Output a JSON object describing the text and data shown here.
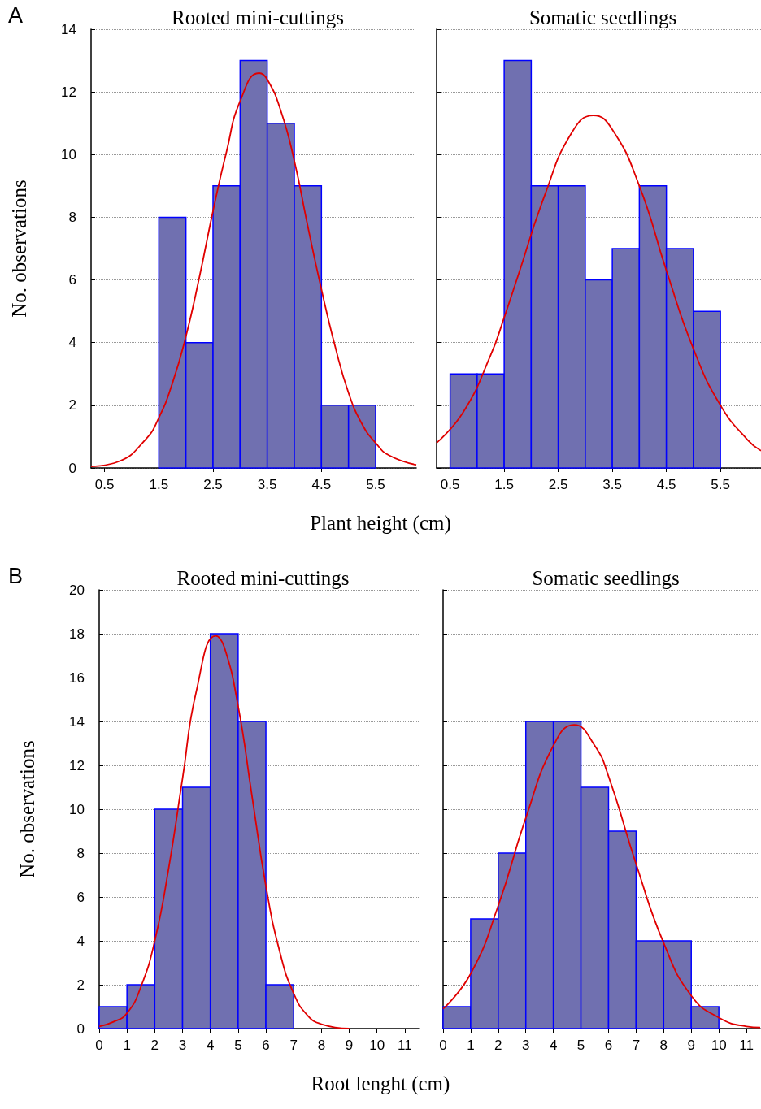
{
  "chart_data": [
    {
      "type": "histogram",
      "title": "Rooted mini-cuttings",
      "xlabel": "Plant height (cm)",
      "ylabel": "No. observations",
      "annotations": [
        "A"
      ],
      "bins": [
        1.5,
        2,
        2.5,
        3,
        3.5,
        4,
        4.5,
        5,
        5.5
      ],
      "values": [
        8,
        4,
        9,
        13,
        11,
        9,
        2,
        2
      ],
      "color": "#7070b0",
      "xlim": [
        0.25,
        6.25
      ],
      "xticks": [
        0.5,
        1.5,
        2.5,
        3.5,
        4.5,
        5.5
      ],
      "ylim": [
        0,
        14
      ],
      "yticks": [
        0,
        2,
        4,
        6,
        8,
        10,
        12,
        14
      ],
      "grid": "y",
      "series": [
        {
          "type": "line",
          "color": "#e00000",
          "marker": "none",
          "x": [
            0.25,
            0.75,
            1.25,
            1.5,
            1.75,
            2,
            2.25,
            2.5,
            2.75,
            3,
            3.35,
            3.5,
            3.75,
            4,
            4.25,
            4.5,
            4.75,
            5,
            5.25,
            5.5,
            5.75,
            6.25
          ],
          "values": [
            0.05,
            0.2,
            0.9,
            1.6,
            2.7,
            4.2,
            6.1,
            8.2,
            10.1,
            11.7,
            12.6,
            12.4,
            11.4,
            9.8,
            7.7,
            5.7,
            3.9,
            2.4,
            1.4,
            0.8,
            0.4,
            0.1
          ]
        }
      ]
    },
    {
      "type": "histogram",
      "title": "Somatic seedlings",
      "bins": [
        0.5,
        1,
        1.5,
        2,
        2.5,
        3,
        3.5,
        4,
        4.5,
        5,
        5.5
      ],
      "values": [
        3,
        3,
        13,
        9,
        9,
        6,
        7,
        9,
        7,
        5
      ],
      "color": "#7070b0",
      "xlim": [
        0.25,
        6.25
      ],
      "xticks": [
        0.5,
        1.5,
        2.5,
        3.5,
        4.5,
        5.5
      ],
      "ylim": [
        0,
        14
      ],
      "yticks": [
        0,
        2,
        4,
        6,
        8,
        10,
        12,
        14
      ],
      "grid": "y",
      "tick_labels": "x",
      "series": [
        {
          "type": "line",
          "color": "#e00000",
          "marker": "none",
          "x": [
            0.25,
            0.75,
            1.25,
            1.5,
            1.75,
            2.25,
            2.75,
            3.15,
            3.5,
            4,
            4.5,
            5,
            5.5,
            6,
            6.25
          ],
          "values": [
            0.8,
            1.8,
            3.6,
            4.8,
            6.1,
            8.7,
            10.7,
            11.25,
            10.8,
            9,
            6.3,
            3.8,
            2,
            0.9,
            0.55
          ]
        }
      ]
    },
    {
      "type": "histogram",
      "title": "Rooted mini-cuttings",
      "xlabel": "Root lenght (cm)",
      "ylabel": "No. observations",
      "annotations": [
        "B"
      ],
      "bins": [
        0,
        1,
        2,
        3,
        4,
        5,
        6,
        7
      ],
      "values": [
        1,
        2,
        10,
        11,
        18,
        14,
        2
      ],
      "color": "#7070b0",
      "xlim": [
        0,
        11.5
      ],
      "xticks": [
        0,
        1,
        2,
        3,
        4,
        5,
        6,
        7,
        8,
        9,
        10,
        11
      ],
      "ylim": [
        0,
        20
      ],
      "yticks": [
        0,
        2,
        4,
        6,
        8,
        10,
        12,
        14,
        16,
        18,
        20
      ],
      "grid": "y",
      "series": [
        {
          "type": "line",
          "color": "#e00000",
          "marker": "none",
          "x": [
            0,
            0.5,
            1,
            1.5,
            2,
            2.5,
            3,
            3.5,
            4.2,
            4.5,
            5,
            5.5,
            6,
            6.5,
            7,
            7.5,
            8,
            9
          ],
          "values": [
            0.1,
            0.3,
            0.7,
            1.9,
            4,
            7.3,
            11.4,
            15.4,
            17.9,
            17.4,
            14.7,
            10.6,
            6.5,
            3.5,
            1.6,
            0.6,
            0.2,
            0
          ]
        }
      ]
    },
    {
      "type": "histogram",
      "title": "Somatic seedlings",
      "bins": [
        0,
        1,
        2,
        3,
        4,
        5,
        6,
        7,
        8,
        9,
        10
      ],
      "values": [
        1,
        5,
        8,
        14,
        14,
        11,
        9,
        4,
        4,
        1
      ],
      "color": "#7070b0",
      "xlim": [
        0,
        11.5
      ],
      "xticks": [
        0,
        1,
        2,
        3,
        4,
        5,
        6,
        7,
        8,
        9,
        10,
        11
      ],
      "ylim": [
        0,
        20
      ],
      "yticks": [
        0,
        2,
        4,
        6,
        8,
        10,
        12,
        14,
        16,
        18,
        20
      ],
      "grid": "y",
      "tick_labels": "x",
      "series": [
        {
          "type": "line",
          "color": "#e00000",
          "marker": "none",
          "x": [
            0,
            1,
            2,
            3,
            4,
            4.75,
            5.5,
            6,
            7,
            8,
            9,
            10,
            11,
            11.5
          ],
          "values": [
            0.9,
            2.5,
            5.6,
            9.6,
            12.9,
            13.85,
            12.9,
            11.5,
            7.5,
            3.9,
            1.5,
            0.5,
            0.1,
            0.05
          ]
        }
      ]
    }
  ]
}
